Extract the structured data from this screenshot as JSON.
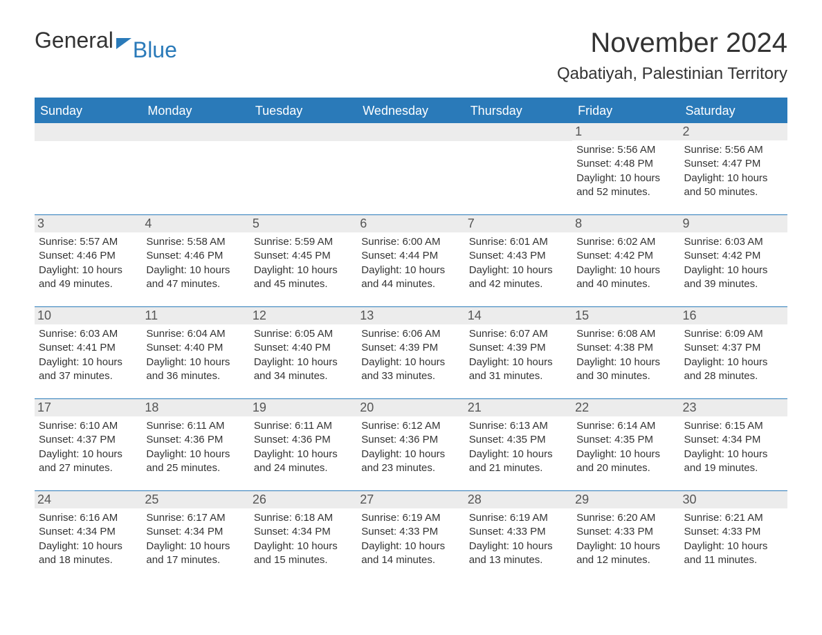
{
  "logo": {
    "part1": "General",
    "part2": "Blue"
  },
  "title": "November 2024",
  "location": "Qabatiyah, Palestinian Territory",
  "colors": {
    "header_bg": "#2a7ab9",
    "header_text": "#ffffff",
    "daynum_bg": "#ececec",
    "border": "#2a7ab9",
    "text": "#333333",
    "page_bg": "#ffffff"
  },
  "weekdays": [
    "Sunday",
    "Monday",
    "Tuesday",
    "Wednesday",
    "Thursday",
    "Friday",
    "Saturday"
  ],
  "weeks": [
    [
      {
        "empty": true
      },
      {
        "empty": true
      },
      {
        "empty": true
      },
      {
        "empty": true
      },
      {
        "empty": true
      },
      {
        "day": "1",
        "sunrise": "Sunrise: 5:56 AM",
        "sunset": "Sunset: 4:48 PM",
        "daylight1": "Daylight: 10 hours",
        "daylight2": "and 52 minutes."
      },
      {
        "day": "2",
        "sunrise": "Sunrise: 5:56 AM",
        "sunset": "Sunset: 4:47 PM",
        "daylight1": "Daylight: 10 hours",
        "daylight2": "and 50 minutes."
      }
    ],
    [
      {
        "day": "3",
        "sunrise": "Sunrise: 5:57 AM",
        "sunset": "Sunset: 4:46 PM",
        "daylight1": "Daylight: 10 hours",
        "daylight2": "and 49 minutes."
      },
      {
        "day": "4",
        "sunrise": "Sunrise: 5:58 AM",
        "sunset": "Sunset: 4:46 PM",
        "daylight1": "Daylight: 10 hours",
        "daylight2": "and 47 minutes."
      },
      {
        "day": "5",
        "sunrise": "Sunrise: 5:59 AM",
        "sunset": "Sunset: 4:45 PM",
        "daylight1": "Daylight: 10 hours",
        "daylight2": "and 45 minutes."
      },
      {
        "day": "6",
        "sunrise": "Sunrise: 6:00 AM",
        "sunset": "Sunset: 4:44 PM",
        "daylight1": "Daylight: 10 hours",
        "daylight2": "and 44 minutes."
      },
      {
        "day": "7",
        "sunrise": "Sunrise: 6:01 AM",
        "sunset": "Sunset: 4:43 PM",
        "daylight1": "Daylight: 10 hours",
        "daylight2": "and 42 minutes."
      },
      {
        "day": "8",
        "sunrise": "Sunrise: 6:02 AM",
        "sunset": "Sunset: 4:42 PM",
        "daylight1": "Daylight: 10 hours",
        "daylight2": "and 40 minutes."
      },
      {
        "day": "9",
        "sunrise": "Sunrise: 6:03 AM",
        "sunset": "Sunset: 4:42 PM",
        "daylight1": "Daylight: 10 hours",
        "daylight2": "and 39 minutes."
      }
    ],
    [
      {
        "day": "10",
        "sunrise": "Sunrise: 6:03 AM",
        "sunset": "Sunset: 4:41 PM",
        "daylight1": "Daylight: 10 hours",
        "daylight2": "and 37 minutes."
      },
      {
        "day": "11",
        "sunrise": "Sunrise: 6:04 AM",
        "sunset": "Sunset: 4:40 PM",
        "daylight1": "Daylight: 10 hours",
        "daylight2": "and 36 minutes."
      },
      {
        "day": "12",
        "sunrise": "Sunrise: 6:05 AM",
        "sunset": "Sunset: 4:40 PM",
        "daylight1": "Daylight: 10 hours",
        "daylight2": "and 34 minutes."
      },
      {
        "day": "13",
        "sunrise": "Sunrise: 6:06 AM",
        "sunset": "Sunset: 4:39 PM",
        "daylight1": "Daylight: 10 hours",
        "daylight2": "and 33 minutes."
      },
      {
        "day": "14",
        "sunrise": "Sunrise: 6:07 AM",
        "sunset": "Sunset: 4:39 PM",
        "daylight1": "Daylight: 10 hours",
        "daylight2": "and 31 minutes."
      },
      {
        "day": "15",
        "sunrise": "Sunrise: 6:08 AM",
        "sunset": "Sunset: 4:38 PM",
        "daylight1": "Daylight: 10 hours",
        "daylight2": "and 30 minutes."
      },
      {
        "day": "16",
        "sunrise": "Sunrise: 6:09 AM",
        "sunset": "Sunset: 4:37 PM",
        "daylight1": "Daylight: 10 hours",
        "daylight2": "and 28 minutes."
      }
    ],
    [
      {
        "day": "17",
        "sunrise": "Sunrise: 6:10 AM",
        "sunset": "Sunset: 4:37 PM",
        "daylight1": "Daylight: 10 hours",
        "daylight2": "and 27 minutes."
      },
      {
        "day": "18",
        "sunrise": "Sunrise: 6:11 AM",
        "sunset": "Sunset: 4:36 PM",
        "daylight1": "Daylight: 10 hours",
        "daylight2": "and 25 minutes."
      },
      {
        "day": "19",
        "sunrise": "Sunrise: 6:11 AM",
        "sunset": "Sunset: 4:36 PM",
        "daylight1": "Daylight: 10 hours",
        "daylight2": "and 24 minutes."
      },
      {
        "day": "20",
        "sunrise": "Sunrise: 6:12 AM",
        "sunset": "Sunset: 4:36 PM",
        "daylight1": "Daylight: 10 hours",
        "daylight2": "and 23 minutes."
      },
      {
        "day": "21",
        "sunrise": "Sunrise: 6:13 AM",
        "sunset": "Sunset: 4:35 PM",
        "daylight1": "Daylight: 10 hours",
        "daylight2": "and 21 minutes."
      },
      {
        "day": "22",
        "sunrise": "Sunrise: 6:14 AM",
        "sunset": "Sunset: 4:35 PM",
        "daylight1": "Daylight: 10 hours",
        "daylight2": "and 20 minutes."
      },
      {
        "day": "23",
        "sunrise": "Sunrise: 6:15 AM",
        "sunset": "Sunset: 4:34 PM",
        "daylight1": "Daylight: 10 hours",
        "daylight2": "and 19 minutes."
      }
    ],
    [
      {
        "day": "24",
        "sunrise": "Sunrise: 6:16 AM",
        "sunset": "Sunset: 4:34 PM",
        "daylight1": "Daylight: 10 hours",
        "daylight2": "and 18 minutes."
      },
      {
        "day": "25",
        "sunrise": "Sunrise: 6:17 AM",
        "sunset": "Sunset: 4:34 PM",
        "daylight1": "Daylight: 10 hours",
        "daylight2": "and 17 minutes."
      },
      {
        "day": "26",
        "sunrise": "Sunrise: 6:18 AM",
        "sunset": "Sunset: 4:34 PM",
        "daylight1": "Daylight: 10 hours",
        "daylight2": "and 15 minutes."
      },
      {
        "day": "27",
        "sunrise": "Sunrise: 6:19 AM",
        "sunset": "Sunset: 4:33 PM",
        "daylight1": "Daylight: 10 hours",
        "daylight2": "and 14 minutes."
      },
      {
        "day": "28",
        "sunrise": "Sunrise: 6:19 AM",
        "sunset": "Sunset: 4:33 PM",
        "daylight1": "Daylight: 10 hours",
        "daylight2": "and 13 minutes."
      },
      {
        "day": "29",
        "sunrise": "Sunrise: 6:20 AM",
        "sunset": "Sunset: 4:33 PM",
        "daylight1": "Daylight: 10 hours",
        "daylight2": "and 12 minutes."
      },
      {
        "day": "30",
        "sunrise": "Sunrise: 6:21 AM",
        "sunset": "Sunset: 4:33 PM",
        "daylight1": "Daylight: 10 hours",
        "daylight2": "and 11 minutes."
      }
    ]
  ]
}
